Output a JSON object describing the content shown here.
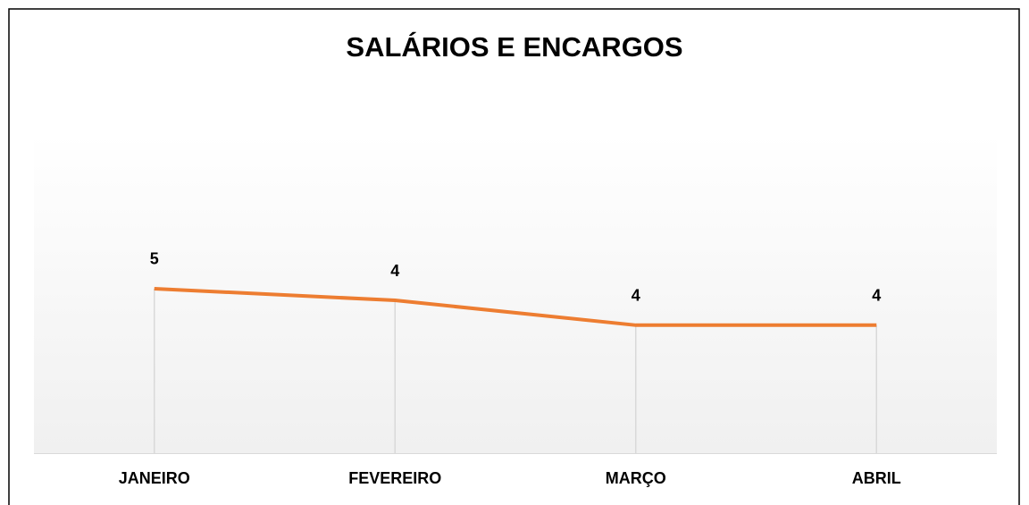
{
  "chart_data": {
    "type": "line",
    "title": "SALÁRIOS E ENCARGOS",
    "categories": [
      "JANEIRO",
      "FEVEREIRO",
      "MARÇO",
      "ABRIL"
    ],
    "series": [
      {
        "name": "SALÁRIOS E ENCARGOS",
        "color": "#ed7d31",
        "values": [
          4.64,
          4.31,
          3.61,
          3.61
        ],
        "value_labels": [
          "5",
          "4",
          "4",
          "4"
        ]
      }
    ],
    "ylim": [
      0,
      9
    ],
    "drop_lines": true
  }
}
